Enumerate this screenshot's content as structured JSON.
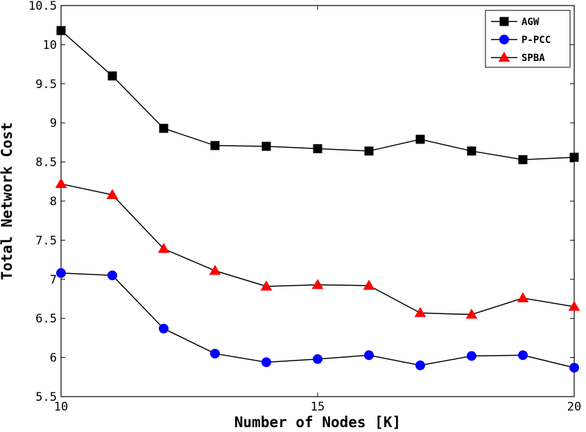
{
  "chart_data": {
    "type": "line",
    "title": "",
    "xlabel": "Number of Nodes [K]",
    "ylabel": "Total Network Cost",
    "xlim": [
      10,
      20
    ],
    "ylim": [
      5.5,
      10.5
    ],
    "x_ticks": [
      10,
      15,
      20
    ],
    "y_ticks": [
      5.5,
      6,
      6.5,
      7,
      7.5,
      8,
      8.5,
      9,
      9.5,
      10,
      10.5
    ],
    "x_tick_labels": [
      "10",
      "15",
      "20"
    ],
    "y_tick_labels": [
      "5.5",
      "6",
      "6.5",
      "7",
      "7.5",
      "8",
      "8.5",
      "9",
      "9.5",
      "10",
      "10.5"
    ],
    "grid": false,
    "legend_position": "top-right",
    "x": [
      10,
      11,
      12,
      13,
      14,
      15,
      16,
      17,
      18,
      19,
      20
    ],
    "series": [
      {
        "name": "AGW",
        "marker": "square",
        "color": "#000000",
        "values": [
          10.18,
          9.6,
          8.93,
          8.71,
          8.7,
          8.67,
          8.64,
          8.79,
          8.64,
          8.53,
          8.56
        ]
      },
      {
        "name": "P-PCC",
        "marker": "circle",
        "color": "#0000ff",
        "values": [
          7.08,
          7.05,
          6.37,
          6.05,
          5.94,
          5.98,
          6.03,
          5.9,
          6.02,
          6.03,
          5.87
        ]
      },
      {
        "name": "SPBA",
        "marker": "triangle",
        "color": "#ff0000",
        "values": [
          8.22,
          8.08,
          7.39,
          7.11,
          6.91,
          6.93,
          6.92,
          6.57,
          6.55,
          6.76,
          6.65
        ]
      }
    ]
  }
}
